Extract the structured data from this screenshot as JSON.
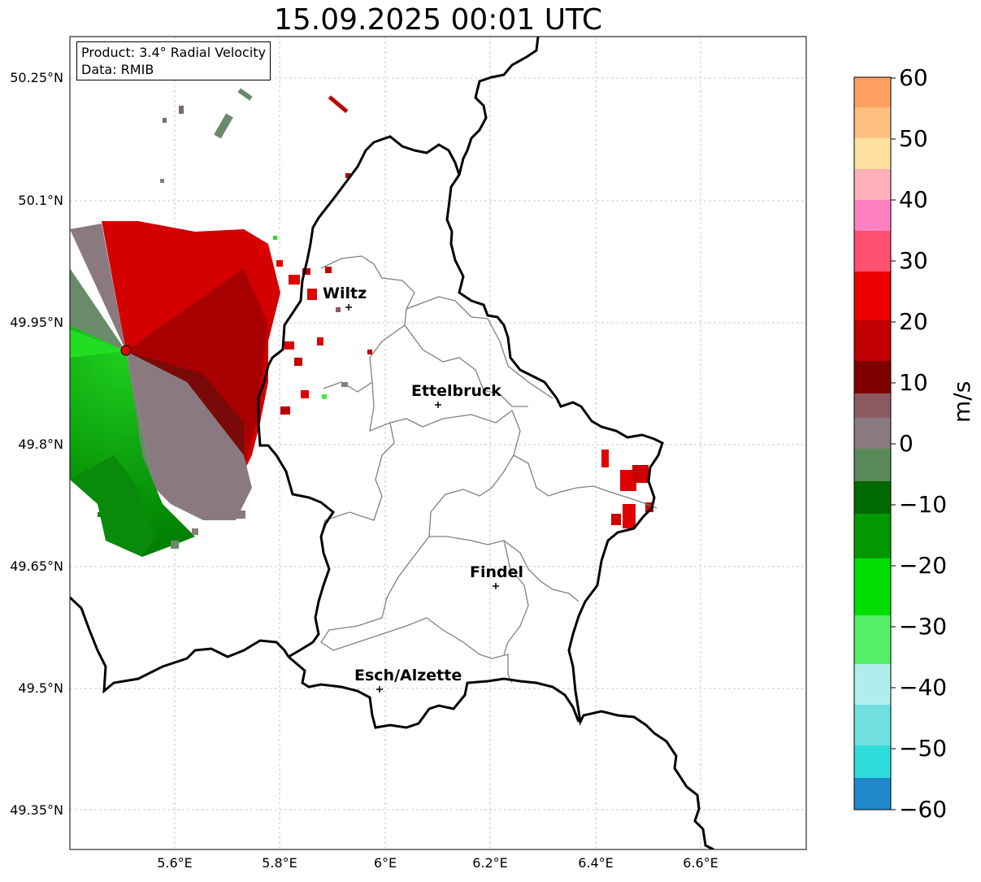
{
  "title": "15.09.2025 00:01 UTC",
  "info_box": {
    "product": "Product: 3.4° Radial Velocity",
    "data_source": "Data: RMIB"
  },
  "axes": {
    "lat_labels": [
      "50.25°N",
      "50.1°N",
      "49.95°N",
      "49.8°N",
      "49.65°N",
      "49.5°N",
      "49.35°N"
    ],
    "lon_labels": [
      "5.6°E",
      "5.8°E",
      "6°E",
      "6.2°E",
      "6.4°E",
      "6.6°E"
    ],
    "gridlines": true
  },
  "cities": [
    {
      "name": "Wiltz",
      "lon": 5.93,
      "lat": 49.967
    },
    {
      "name": "Ettelbruck",
      "lon": 6.1,
      "lat": 49.85
    },
    {
      "name": "Findel",
      "lon": 6.21,
      "lat": 49.627
    },
    {
      "name": "Esch/Alzette",
      "lon": 5.99,
      "lat": 49.5
    }
  ],
  "radar_site": {
    "lon": 5.505,
    "lat": 49.914
  },
  "colorbar": {
    "label": "m/s",
    "ticks": [
      "60",
      "50",
      "40",
      "30",
      "20",
      "10",
      "0",
      "−10",
      "−20",
      "−30",
      "−40",
      "−50",
      "−60"
    ],
    "range": [
      -60,
      60
    ]
  },
  "colors": {
    "approaching": "#00aa00",
    "receding": "#e00000",
    "near_zero": "#8a7a80",
    "border_national": "#000000",
    "border_cantonal": "#808080"
  }
}
